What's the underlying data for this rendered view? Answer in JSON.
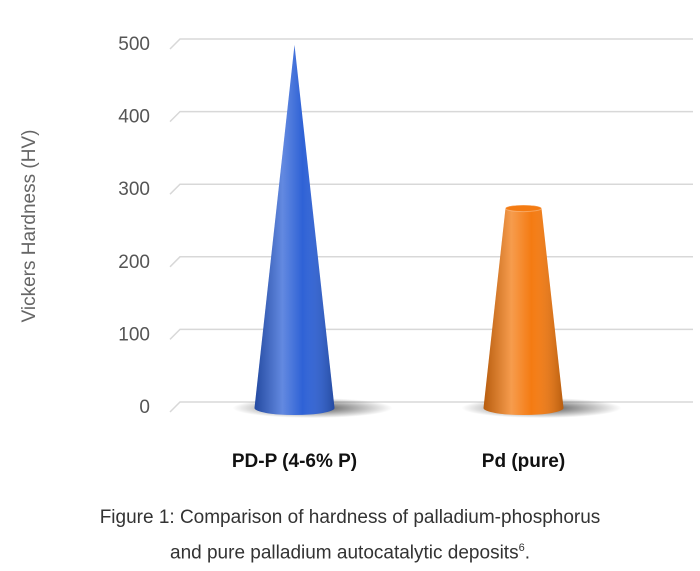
{
  "chart_data": {
    "type": "cone",
    "y_label": "Vickers Hardness (HV)",
    "categories": [
      "PD-P (4-6% P)",
      "Pd (pure)"
    ],
    "series": [
      {
        "values": [
          500,
          275
        ],
        "colors": [
          "#2f62d6",
          "#f47b12"
        ]
      }
    ],
    "ylim": [
      0,
      500
    ],
    "yticks": [
      0,
      100,
      200,
      300,
      400,
      500
    ],
    "grid": true
  },
  "caption": {
    "lines": [
      "Figure 1: Comparison of hardness of palladium-phosphorus",
      "and pure palladium autocatalytic deposits"
    ],
    "ref": "6",
    "end": "."
  }
}
